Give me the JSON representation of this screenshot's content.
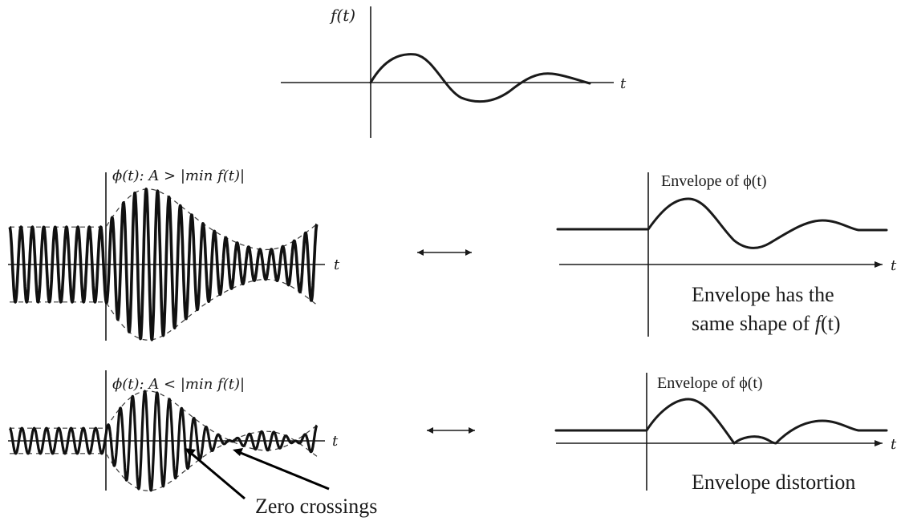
{
  "top": {
    "ylabel": "f(t)",
    "xlabel": "t"
  },
  "row1": {
    "left_label": "ϕ(t): A > |min f(t)|",
    "left_xlabel": "t",
    "right_label": "Envelope of ϕ(t)",
    "right_xlabel": "t",
    "caption_line1": "Envelope has the",
    "caption_line2_a": "same shape of ",
    "caption_line2_b": "f",
    "caption_line2_c": "(t)"
  },
  "row2": {
    "left_label": "ϕ(t): A < |min f(t)|",
    "left_xlabel": "t",
    "right_label": "Envelope of ϕ(t)",
    "right_xlabel": "t",
    "caption": "Envelope distortion",
    "pointer_label": "Zero crossings"
  }
}
